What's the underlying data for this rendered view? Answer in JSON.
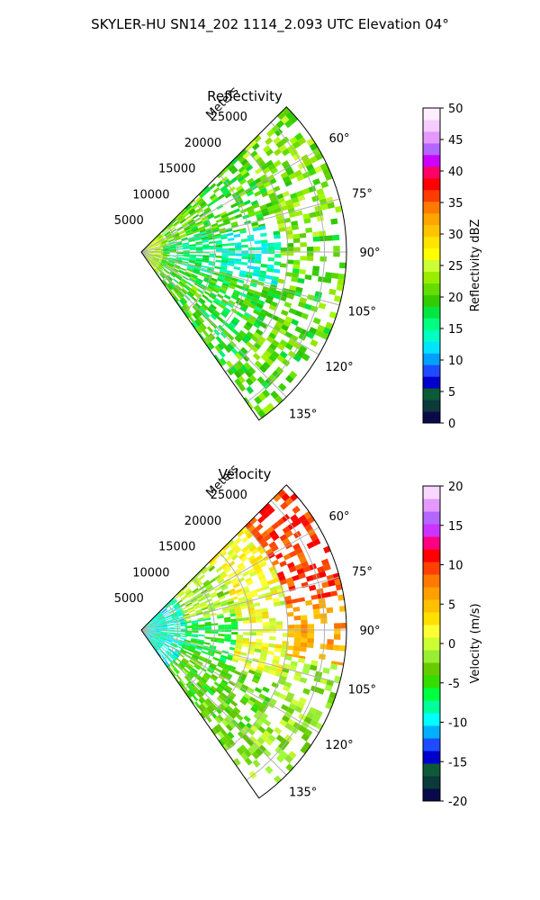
{
  "figure": {
    "title": "SKYLER-HU  SN14_202  1114_2.093 UTC Elevation 04°"
  },
  "chart_data": [
    {
      "type": "heatmap",
      "subtype": "polar sector (PPI)",
      "title": "Reflectivity",
      "range_label": "Meters",
      "range_ticks": [
        5000,
        10000,
        15000,
        20000,
        25000
      ],
      "range_tick_labels": [
        "5000",
        "10000",
        "15000",
        "20000",
        "25000"
      ],
      "range_max": 28000,
      "azimuth_range": [
        45,
        145
      ],
      "azimuth_ticks": [
        60,
        75,
        90,
        105,
        120,
        135
      ],
      "azimuth_tick_labels": [
        "60°",
        "75°",
        "90°",
        "105°",
        "120°",
        "135°"
      ],
      "grid": true,
      "colorbar": {
        "label": "Reflectivity dBZ",
        "min": 0,
        "max": 50,
        "ticks": [
          0,
          5,
          10,
          15,
          20,
          25,
          30,
          35,
          40,
          45,
          50
        ],
        "tick_labels": [
          "0",
          "5",
          "10",
          "15",
          "20",
          "25",
          "30",
          "35",
          "40",
          "45",
          "50"
        ]
      },
      "fields": [
        {
          "r": [
            0,
            3000
          ],
          "az": [
            45,
            145
          ],
          "value": 24
        },
        {
          "r": [
            3000,
            11000
          ],
          "az": [
            45,
            72
          ],
          "value": 21
        },
        {
          "r": [
            3000,
            11000
          ],
          "az": [
            72,
            110
          ],
          "value": 17
        },
        {
          "r": [
            3000,
            11000
          ],
          "az": [
            110,
            145
          ],
          "value": 20
        },
        {
          "r": [
            11000,
            19000
          ],
          "az": [
            45,
            78
          ],
          "value": 20
        },
        {
          "r": [
            11000,
            19000
          ],
          "az": [
            78,
            104
          ],
          "value": 14
        },
        {
          "r": [
            11000,
            19000
          ],
          "az": [
            104,
            145
          ],
          "value": 19
        },
        {
          "r": [
            19000,
            27500
          ],
          "az": [
            45,
            85
          ],
          "value": 22
        },
        {
          "r": [
            19000,
            27500
          ],
          "az": [
            85,
            145
          ],
          "value": 21
        }
      ]
    },
    {
      "type": "heatmap",
      "subtype": "polar sector (PPI)",
      "title": "Velocity",
      "range_label": "Meters",
      "range_ticks": [
        5000,
        10000,
        15000,
        20000,
        25000
      ],
      "range_tick_labels": [
        "5000",
        "10000",
        "15000",
        "20000",
        "25000"
      ],
      "range_max": 28000,
      "azimuth_range": [
        45,
        145
      ],
      "azimuth_ticks": [
        60,
        75,
        90,
        105,
        120,
        135
      ],
      "azimuth_tick_labels": [
        "60°",
        "75°",
        "90°",
        "105°",
        "120°",
        "135°"
      ],
      "grid": true,
      "colorbar": {
        "label": "Velocity (m/s)",
        "min": -20,
        "max": 20,
        "ticks": [
          -20,
          -15,
          -10,
          -5,
          0,
          5,
          10,
          15,
          20
        ],
        "tick_labels": [
          "-20",
          "-15",
          "-10",
          "-5",
          "0",
          "5",
          "10",
          "15",
          "20"
        ]
      },
      "fields": [
        {
          "r": [
            0,
            6000
          ],
          "az": [
            45,
            145
          ],
          "value": -9
        },
        {
          "r": [
            6000,
            13000
          ],
          "az": [
            45,
            80
          ],
          "value": -1
        },
        {
          "r": [
            6000,
            13000
          ],
          "az": [
            80,
            112
          ],
          "value": -6
        },
        {
          "r": [
            6000,
            13000
          ],
          "az": [
            112,
            145
          ],
          "value": -4
        },
        {
          "r": [
            13000,
            20000
          ],
          "az": [
            45,
            72
          ],
          "value": 2
        },
        {
          "r": [
            13000,
            20000
          ],
          "az": [
            72,
            110
          ],
          "value": 1
        },
        {
          "r": [
            13000,
            20000
          ],
          "az": [
            110,
            145
          ],
          "value": -3
        },
        {
          "r": [
            20000,
            27500
          ],
          "az": [
            45,
            80
          ],
          "value": 10
        },
        {
          "r": [
            20000,
            27500
          ],
          "az": [
            80,
            100
          ],
          "value": 6
        },
        {
          "r": [
            20000,
            27500
          ],
          "az": [
            100,
            145
          ],
          "value": -2
        }
      ]
    }
  ]
}
